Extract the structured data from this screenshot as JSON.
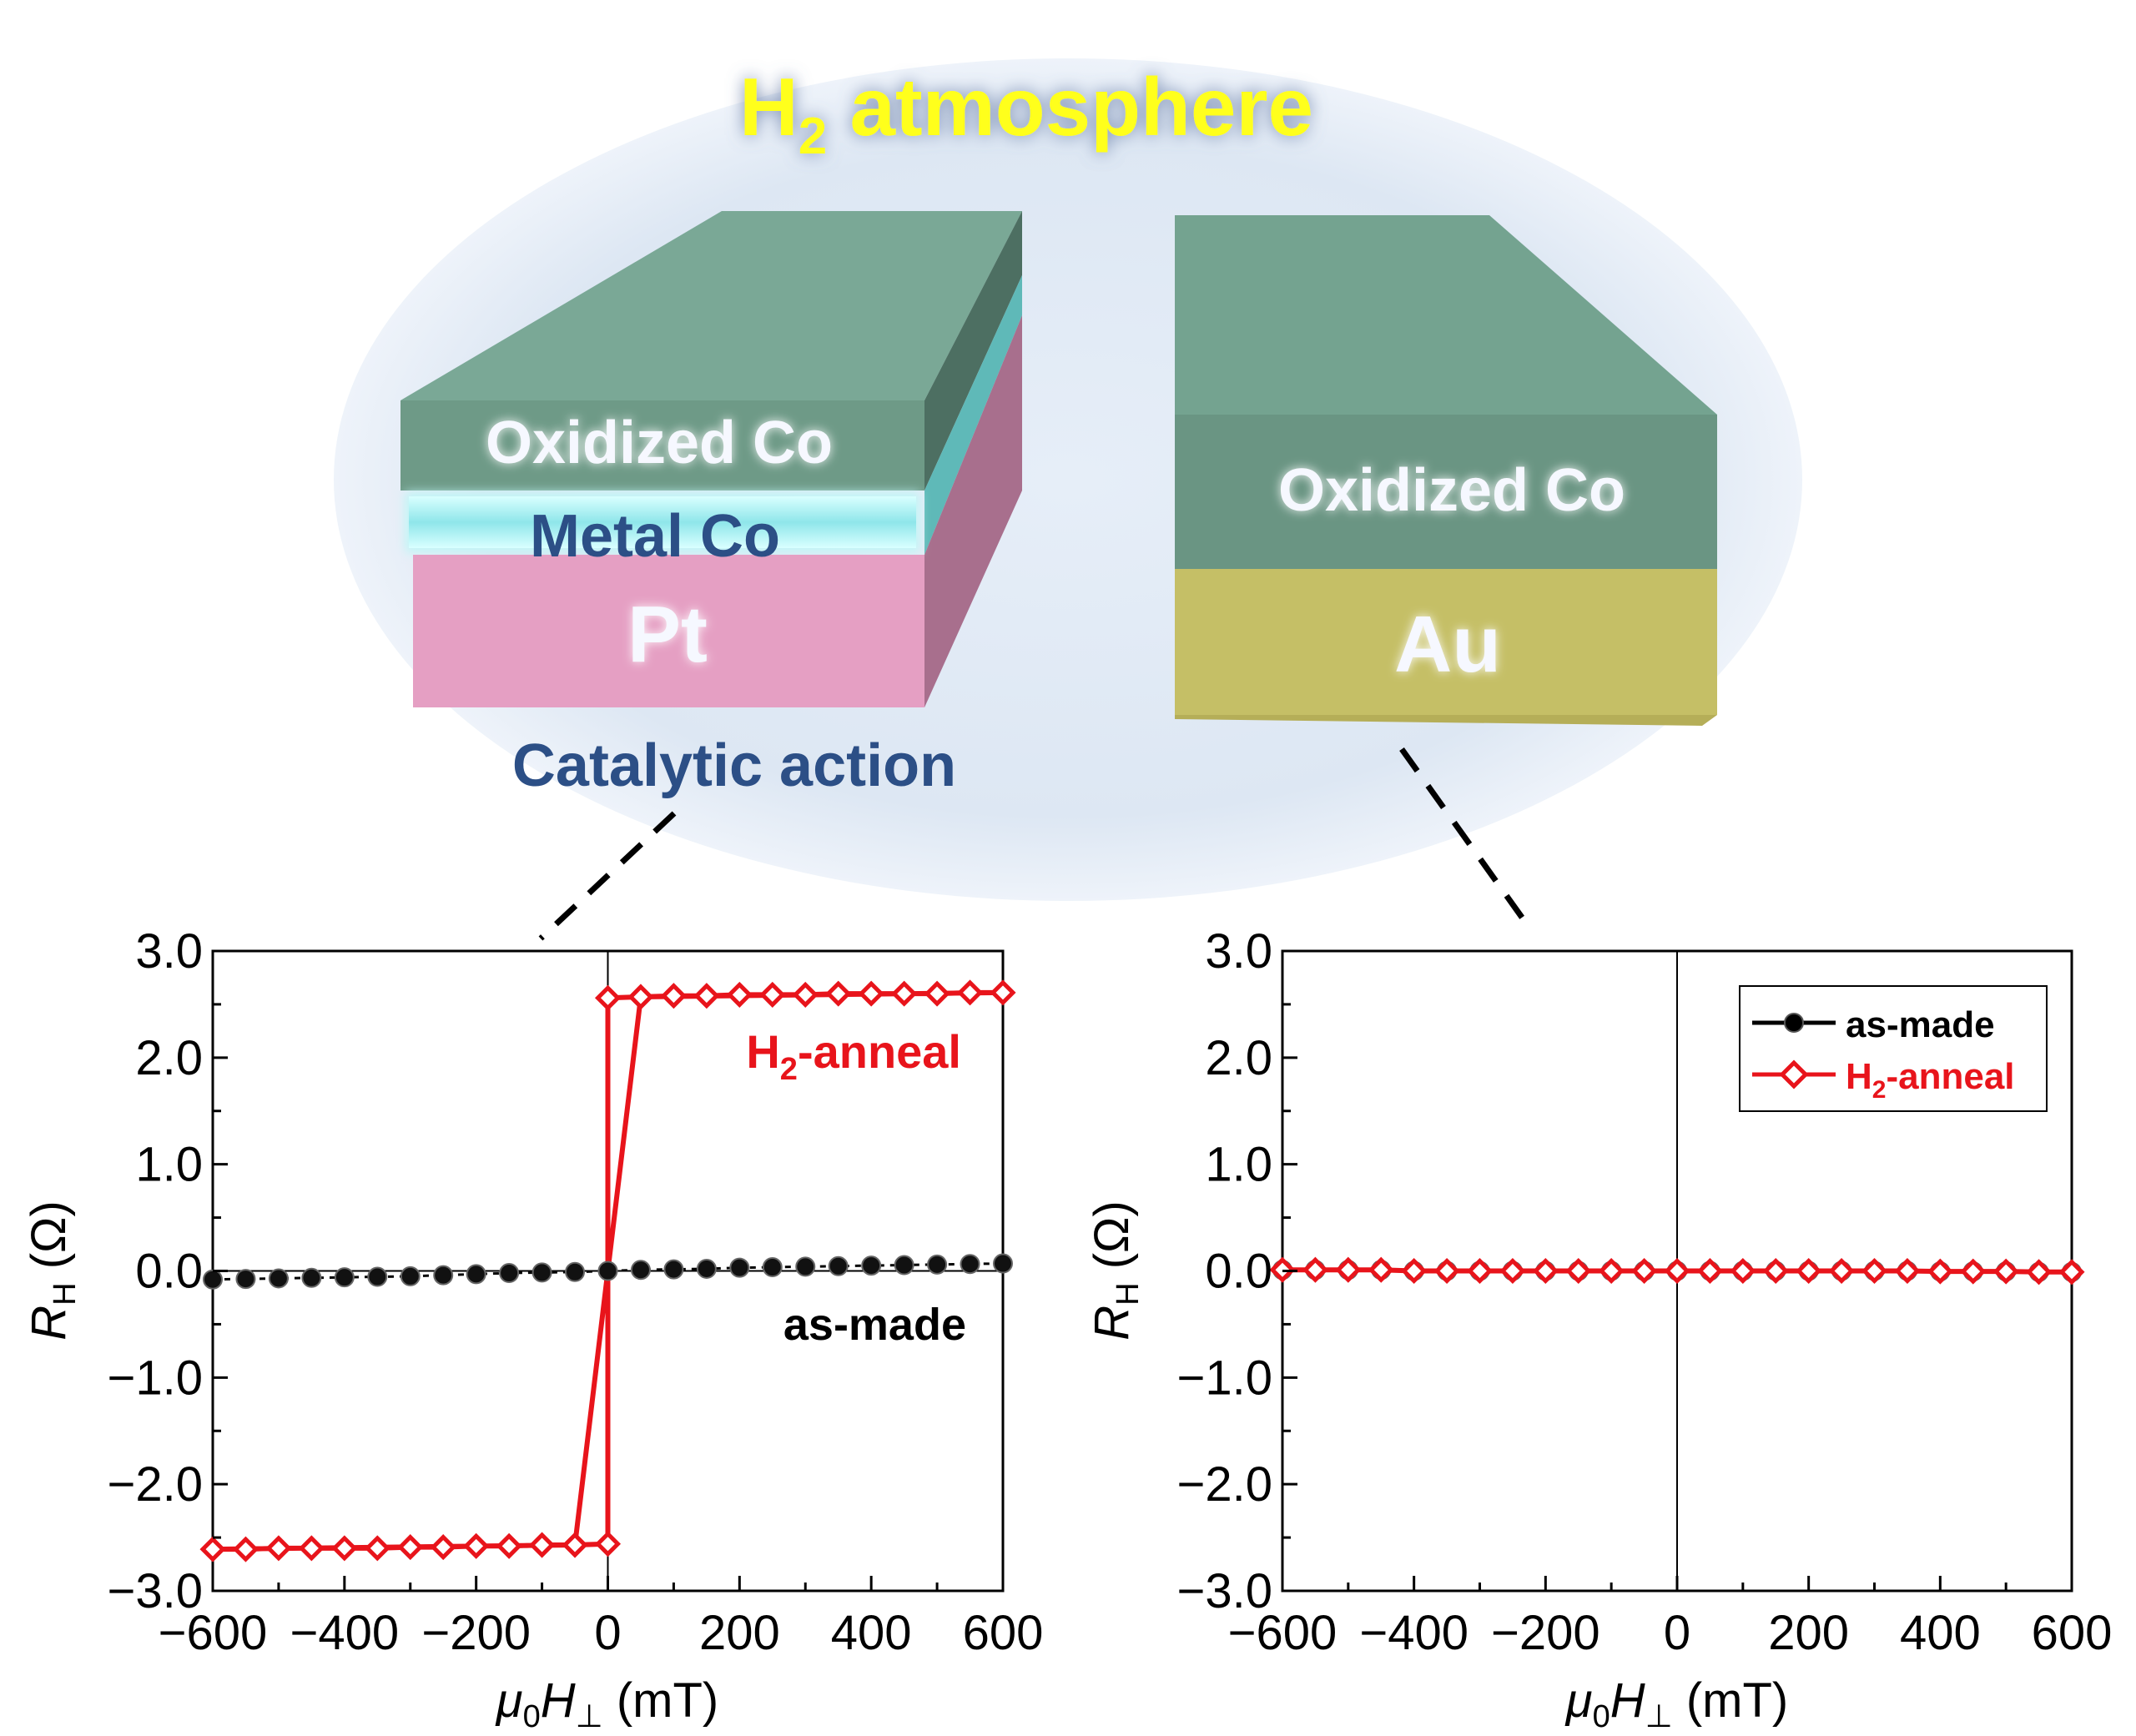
{
  "illustration": {
    "atmosphere_label": {
      "main": "H",
      "sub": "2",
      "rest": " atmosphere"
    },
    "left_stack": {
      "layers": [
        "Oxidized Co",
        "Metal Co",
        "Pt"
      ],
      "caption": "Catalytic action"
    },
    "right_stack": {
      "layers": [
        "Oxidized Co",
        "Au"
      ]
    },
    "colors": {
      "oxidized_co": "#6e9a87",
      "metal_co_glow": "#7fe8e8",
      "pt": "#e79fc4",
      "au": "#c9c36c",
      "atmosphere_bg": "#dde7f3",
      "atmosphere_text": "#ffff1a",
      "caption_text": "#2c4f86"
    }
  },
  "chart_data": [
    {
      "type": "line",
      "panel": "left",
      "xlim": [
        -600,
        600
      ],
      "ylim": [
        -3.0,
        3.0
      ],
      "x_ticks": [
        "−600",
        "−400",
        "−200",
        "0",
        "200",
        "400",
        "600"
      ],
      "y_ticks": [
        "3.0",
        "2.0",
        "1.0",
        "0.0",
        "−1.0",
        "−2.0",
        "−3.0"
      ],
      "xlabel": {
        "mu": "μ",
        "mu_sub": "0",
        "H": "H",
        "H_sub": "⊥",
        "unit": " (mT)"
      },
      "ylabel": {
        "R": "R",
        "R_sub": "H",
        "unit": " (Ω)"
      },
      "annotations": [
        {
          "text": "H",
          "sub": "2",
          "rest": "-anneal",
          "color": "#e8141b"
        },
        {
          "text": "as-made",
          "color": "#000000"
        }
      ],
      "series": [
        {
          "name": "as-made",
          "color": "#000000",
          "marker": "circle",
          "x": [
            -600,
            -550,
            -500,
            -450,
            -400,
            -350,
            -300,
            -250,
            -200,
            -150,
            -100,
            -50,
            0,
            50,
            100,
            150,
            200,
            250,
            300,
            350,
            400,
            450,
            500,
            550,
            600
          ],
          "y": [
            -0.08,
            -0.075,
            -0.07,
            -0.065,
            -0.06,
            -0.055,
            -0.05,
            -0.04,
            -0.03,
            -0.02,
            -0.015,
            -0.01,
            0.0,
            0.01,
            0.015,
            0.02,
            0.03,
            0.035,
            0.04,
            0.045,
            0.05,
            0.055,
            0.06,
            0.065,
            0.07
          ]
        },
        {
          "name": "H2-anneal",
          "color": "#e8141b",
          "marker": "diamond",
          "x": [
            -600,
            -550,
            -500,
            -450,
            -400,
            -350,
            -300,
            -250,
            -200,
            -150,
            -100,
            -50,
            0,
            0,
            50,
            100,
            150,
            200,
            250,
            300,
            350,
            400,
            450,
            500,
            550,
            600
          ],
          "y": [
            -2.61,
            -2.61,
            -2.6,
            -2.6,
            -2.6,
            -2.6,
            -2.59,
            -2.59,
            -2.58,
            -2.58,
            -2.57,
            -2.57,
            -2.56,
            2.56,
            2.57,
            2.58,
            2.58,
            2.59,
            2.59,
            2.59,
            2.6,
            2.6,
            2.6,
            2.6,
            2.61,
            2.61
          ],
          "loop_return": {
            "x": [
              600,
              50,
              -50,
              -600
            ],
            "y": [
              2.61,
              2.57,
              -2.57,
              -2.61
            ]
          }
        }
      ]
    },
    {
      "type": "line",
      "panel": "right",
      "xlim": [
        -600,
        600
      ],
      "ylim": [
        -3.0,
        3.0
      ],
      "x_ticks": [
        "−600",
        "−400",
        "−200",
        "0",
        "200",
        "400",
        "600"
      ],
      "y_ticks": [
        "3.0",
        "2.0",
        "1.0",
        "0.0",
        "−1.0",
        "−2.0",
        "−3.0"
      ],
      "xlabel": {
        "mu": "μ",
        "mu_sub": "0",
        "H": "H",
        "H_sub": "⊥",
        "unit": " (mT)"
      },
      "ylabel": {
        "R": "R",
        "R_sub": "H",
        "unit": " (Ω)"
      },
      "legend": {
        "position": "top-right",
        "entries": [
          {
            "text": "as-made",
            "color": "#000000",
            "marker": "circle"
          },
          {
            "text": "H",
            "sub": "2",
            "rest": "-anneal",
            "color": "#e8141b",
            "marker": "diamond"
          }
        ]
      },
      "series": [
        {
          "name": "as-made",
          "color": "#000000",
          "marker": "circle",
          "x": [
            -600,
            -550,
            -500,
            -450,
            -400,
            -350,
            -300,
            -250,
            -200,
            -150,
            -100,
            -50,
            0,
            50,
            100,
            150,
            200,
            250,
            300,
            350,
            400,
            450,
            500,
            550,
            600
          ],
          "y": [
            0.01,
            0.01,
            0.01,
            0.01,
            0.0,
            0.0,
            0.0,
            0.0,
            0.0,
            0.0,
            0.0,
            0.0,
            0.0,
            0.0,
            0.0,
            0.0,
            0.0,
            0.0,
            0.0,
            0.0,
            -0.005,
            -0.005,
            -0.005,
            -0.01,
            -0.01
          ]
        },
        {
          "name": "H2-anneal",
          "color": "#e8141b",
          "marker": "diamond",
          "x": [
            -600,
            -550,
            -500,
            -450,
            -400,
            -350,
            -300,
            -250,
            -200,
            -150,
            -100,
            -50,
            0,
            50,
            100,
            150,
            200,
            250,
            300,
            350,
            400,
            450,
            500,
            550,
            600
          ],
          "y": [
            0.01,
            0.01,
            0.01,
            0.01,
            0.0,
            0.0,
            0.0,
            0.0,
            0.0,
            0.0,
            0.0,
            0.0,
            0.0,
            0.0,
            0.0,
            0.0,
            0.0,
            0.0,
            0.0,
            0.0,
            -0.005,
            -0.005,
            -0.005,
            -0.01,
            -0.01
          ]
        }
      ]
    }
  ]
}
